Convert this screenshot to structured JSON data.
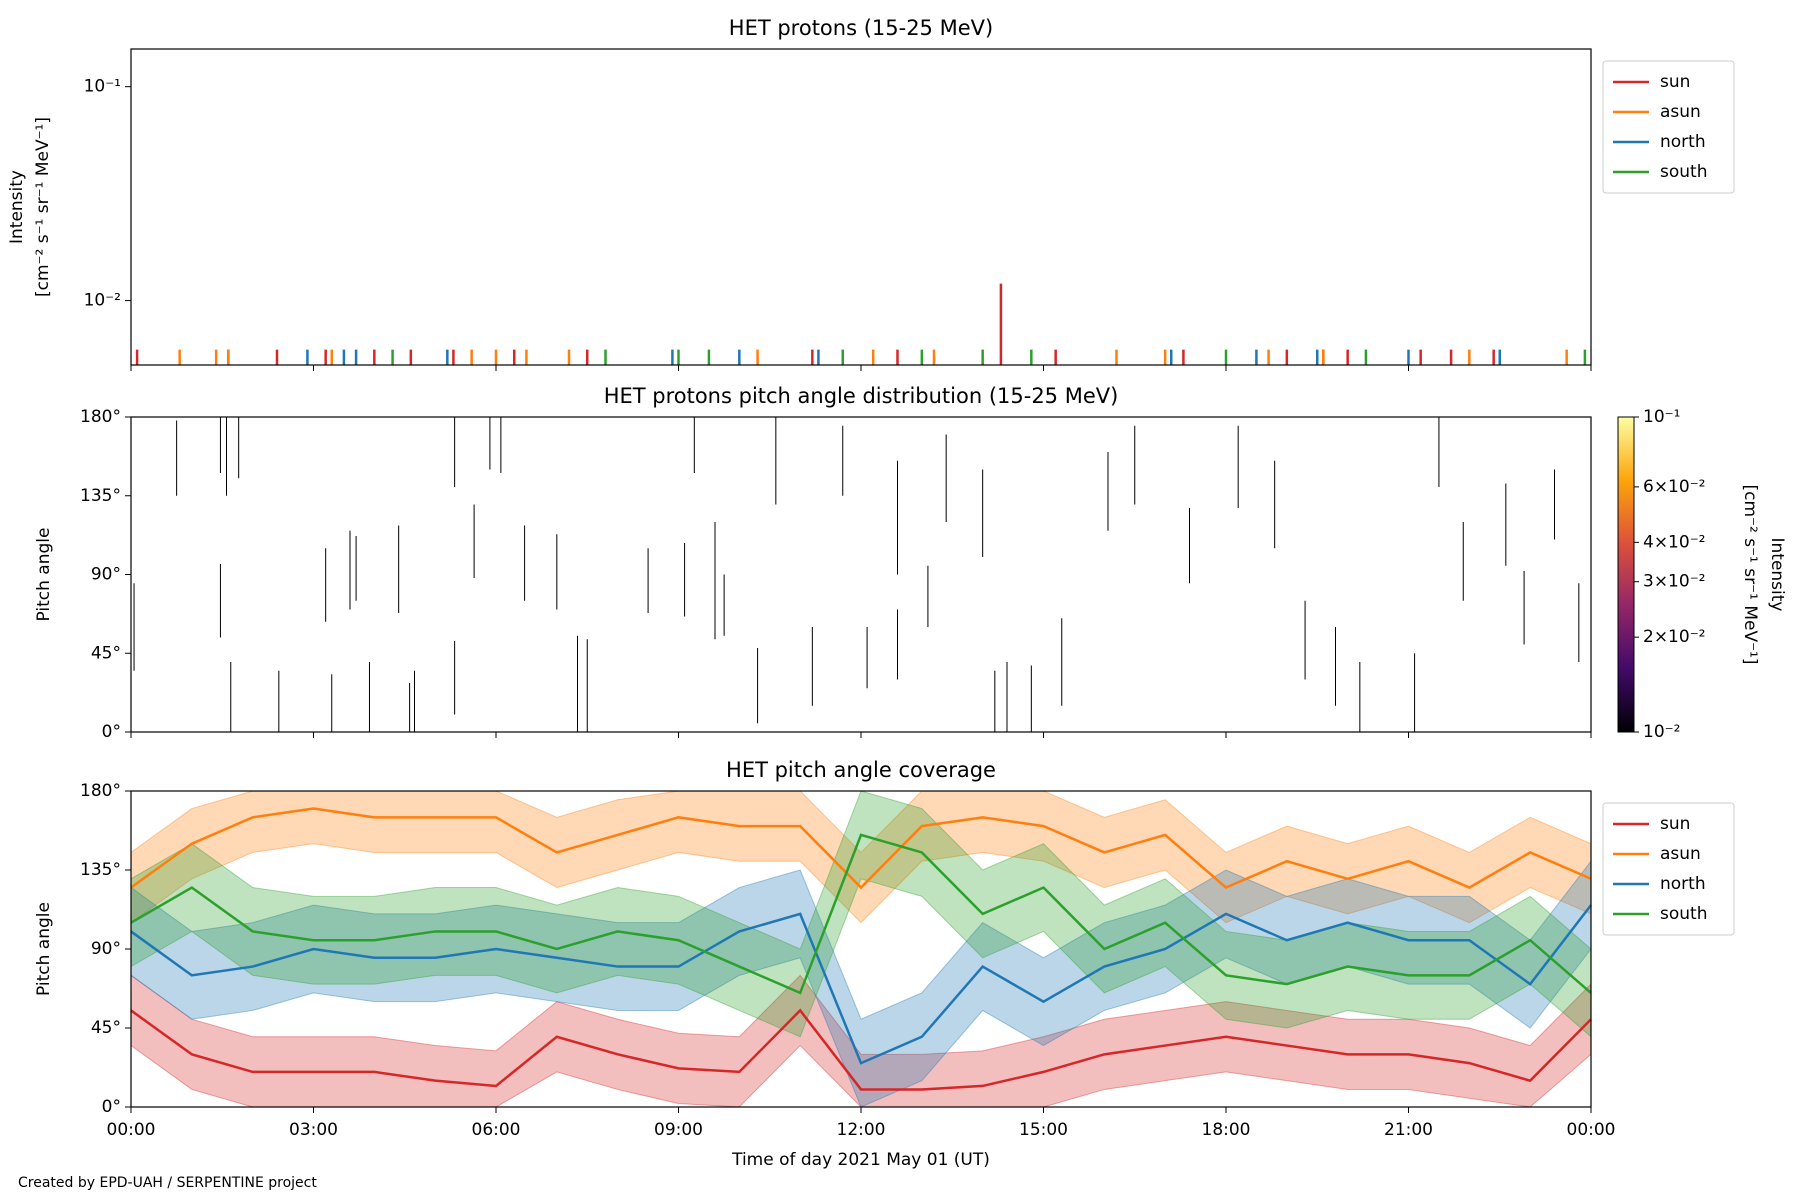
{
  "footer": "Created by EPD-UAH / SERPENTINE project",
  "chart_data": [
    {
      "type": "spike",
      "title": "HET protons (15-25 MeV)",
      "ylabel": [
        "Intensity",
        "[cm⁻² s⁻¹ sr⁻¹ MeV⁻¹]"
      ],
      "log_y": true,
      "ylim": [
        0.005,
        0.15
      ],
      "yticks": [
        {
          "value": 0.01,
          "label": "10⁻²"
        },
        {
          "value": 0.1,
          "label": "10⁻¹"
        }
      ],
      "legend": "outside-upper-right",
      "series": [
        {
          "name": "sun",
          "color": "#d62728",
          "x": [
            0.1,
            1.6,
            2.4,
            3.2,
            4.0,
            4.6,
            5.3,
            6.3,
            7.5,
            11.2,
            12.6,
            14.3,
            15.2,
            17.3,
            19.0,
            19.6,
            20.0,
            21.2,
            21.7,
            22.4
          ],
          "values": [
            0.0059,
            0.0059,
            0.0059,
            0.0059,
            0.0059,
            0.0059,
            0.0059,
            0.0059,
            0.0059,
            0.0059,
            0.0059,
            0.012,
            0.0059,
            0.0059,
            0.0059,
            0.0059,
            0.0059,
            0.0059,
            0.0059,
            0.0059
          ]
        },
        {
          "name": "asun",
          "color": "#ff7f0e",
          "x": [
            0.8,
            1.4,
            1.6,
            3.3,
            5.6,
            6.0,
            6.5,
            7.2,
            10.3,
            12.2,
            13.2,
            16.2,
            17.0,
            18.7,
            19.6,
            22.0,
            23.6
          ],
          "values": [
            0.0059,
            0.0059,
            0.0059,
            0.0059,
            0.0059,
            0.0059,
            0.0059,
            0.0059,
            0.0059,
            0.0059,
            0.0059,
            0.0059,
            0.0059,
            0.0059,
            0.0059,
            0.0059,
            0.0059
          ]
        },
        {
          "name": "north",
          "color": "#1f77b4",
          "x": [
            2.9,
            3.5,
            3.7,
            5.2,
            8.9,
            10.0,
            11.3,
            17.1,
            18.5,
            19.5,
            21.0,
            22.5
          ],
          "values": [
            0.0059,
            0.0059,
            0.0059,
            0.0059,
            0.0059,
            0.0059,
            0.0059,
            0.0059,
            0.0059,
            0.0059,
            0.0059,
            0.0059
          ]
        },
        {
          "name": "south",
          "color": "#2ca02c",
          "x": [
            4.3,
            7.8,
            9.0,
            9.5,
            11.7,
            13.0,
            14.0,
            14.8,
            18.0,
            20.3,
            23.9
          ],
          "values": [
            0.0059,
            0.0059,
            0.0059,
            0.0059,
            0.0059,
            0.0059,
            0.0059,
            0.0059,
            0.0059,
            0.0059,
            0.0059
          ]
        }
      ]
    },
    {
      "type": "segments",
      "title": "HET protons pitch angle distribution (15-25 MeV)",
      "ylabel": "Pitch angle",
      "color": "#000000",
      "ylim": [
        0,
        180
      ],
      "yticks": [
        {
          "value": 0,
          "label": "0°"
        },
        {
          "value": 45,
          "label": "45°"
        },
        {
          "value": 90,
          "label": "90°"
        },
        {
          "value": 135,
          "label": "135°"
        },
        {
          "value": 180,
          "label": "180°"
        }
      ],
      "x": [
        0.05,
        0.75,
        1.47,
        1.47,
        1.57,
        1.64,
        1.77,
        2.43,
        3.2,
        3.3,
        3.6,
        3.7,
        3.92,
        4.4,
        4.58,
        4.66,
        5.32,
        5.32,
        5.64,
        5.9,
        6.08,
        6.47,
        7.0,
        7.34,
        7.5,
        8.5,
        9.1,
        9.26,
        9.6,
        9.75,
        10.3,
        10.6,
        11.2,
        11.7,
        12.1,
        12.6,
        12.6,
        13.1,
        13.4,
        14.0,
        14.2,
        14.4,
        14.8,
        15.3,
        16.06,
        16.5,
        17.4,
        18.2,
        18.8,
        19.3,
        19.8,
        20.2,
        21.1,
        21.5,
        21.9,
        22.6,
        22.9,
        23.4,
        23.8
      ],
      "low": [
        35,
        135,
        54,
        148,
        135,
        0,
        145,
        0,
        63,
        0,
        70,
        75,
        0,
        68,
        0,
        0,
        10,
        140,
        88,
        150,
        148,
        75,
        70,
        0,
        0,
        68,
        66,
        148,
        53,
        55,
        5,
        130,
        15,
        135,
        25,
        30,
        90,
        60,
        120,
        100,
        0,
        0,
        0,
        15,
        115,
        130,
        85,
        128,
        105,
        30,
        15,
        0,
        0,
        140,
        75,
        95,
        50,
        110,
        40
      ],
      "high": [
        85,
        178,
        96,
        180,
        180,
        40,
        180,
        35,
        105,
        33,
        115,
        112,
        40,
        118,
        28,
        35,
        52,
        180,
        130,
        180,
        180,
        118,
        113,
        55,
        53,
        105,
        108,
        180,
        120,
        90,
        48,
        180,
        60,
        175,
        60,
        70,
        155,
        95,
        170,
        150,
        35,
        40,
        38,
        65,
        160,
        175,
        128,
        175,
        155,
        75,
        60,
        40,
        45,
        180,
        120,
        142,
        92,
        150,
        85
      ],
      "colorbar": {
        "label": [
          "Intensity",
          "[cm⁻² s⁻¹ sr⁻¹ MeV⁻¹]"
        ],
        "colormap": "inferno",
        "log": true,
        "clim": [
          0.01,
          0.1
        ],
        "cticks": [
          {
            "value": 0.01,
            "label": "10⁻²"
          },
          {
            "value": 0.02,
            "label": "2×10⁻²"
          },
          {
            "value": 0.03,
            "label": "3×10⁻²"
          },
          {
            "value": 0.04,
            "label": "4×10⁻²"
          },
          {
            "value": 0.06,
            "label": "6×10⁻²"
          },
          {
            "value": 0.1,
            "label": "10⁻¹"
          }
        ]
      }
    },
    {
      "type": "band-line",
      "title": "HET pitch angle coverage",
      "ylabel": "Pitch angle",
      "xlabel": "Time of day 2021 May 01 (UT)",
      "legend": "outside-upper-right",
      "ylim": [
        0,
        180
      ],
      "yticks": [
        {
          "value": 0,
          "label": "0°"
        },
        {
          "value": 45,
          "label": "45°"
        },
        {
          "value": 90,
          "label": "90°"
        },
        {
          "value": 135,
          "label": "135°"
        },
        {
          "value": 180,
          "label": "180°"
        }
      ],
      "xlim": [
        0,
        24
      ],
      "xticks": [
        {
          "value": 0,
          "label": "00:00"
        },
        {
          "value": 3,
          "label": "03:00"
        },
        {
          "value": 6,
          "label": "06:00"
        },
        {
          "value": 9,
          "label": "09:00"
        },
        {
          "value": 12,
          "label": "12:00"
        },
        {
          "value": 15,
          "label": "15:00"
        },
        {
          "value": 18,
          "label": "18:00"
        },
        {
          "value": 21,
          "label": "21:00"
        },
        {
          "value": 24,
          "label": "00:00"
        }
      ],
      "x": [
        0,
        1,
        2,
        3,
        4,
        5,
        6,
        7,
        8,
        9,
        10,
        11,
        12,
        13,
        14,
        15,
        16,
        17,
        18,
        19,
        20,
        21,
        22,
        23,
        24
      ],
      "series": [
        {
          "name": "sun",
          "color": "#d62728",
          "values": [
            55,
            30,
            20,
            20,
            20,
            15,
            12,
            40,
            30,
            22,
            20,
            55,
            10,
            10,
            12,
            20,
            30,
            35,
            40,
            35,
            30,
            30,
            25,
            15,
            50
          ],
          "lower": [
            35,
            10,
            0,
            0,
            0,
            0,
            0,
            20,
            10,
            2,
            0,
            35,
            0,
            0,
            0,
            0,
            10,
            15,
            20,
            15,
            10,
            10,
            5,
            0,
            30
          ],
          "upper": [
            75,
            50,
            40,
            40,
            40,
            35,
            32,
            60,
            50,
            42,
            40,
            75,
            30,
            30,
            32,
            40,
            50,
            55,
            60,
            55,
            50,
            50,
            45,
            35,
            70
          ]
        },
        {
          "name": "asun",
          "color": "#ff7f0e",
          "values": [
            125,
            150,
            165,
            170,
            165,
            165,
            165,
            145,
            155,
            165,
            160,
            160,
            125,
            160,
            165,
            160,
            145,
            155,
            125,
            140,
            130,
            140,
            125,
            145,
            130
          ],
          "lower": [
            105,
            130,
            145,
            150,
            145,
            145,
            145,
            125,
            135,
            145,
            140,
            140,
            105,
            140,
            145,
            140,
            125,
            135,
            105,
            120,
            110,
            120,
            105,
            125,
            110
          ],
          "upper": [
            145,
            170,
            180,
            180,
            180,
            180,
            180,
            165,
            175,
            180,
            180,
            180,
            145,
            180,
            180,
            180,
            165,
            175,
            145,
            160,
            150,
            160,
            145,
            165,
            150
          ]
        },
        {
          "name": "north",
          "color": "#1f77b4",
          "values": [
            100,
            75,
            80,
            90,
            85,
            85,
            90,
            85,
            80,
            80,
            100,
            110,
            25,
            40,
            80,
            60,
            80,
            90,
            110,
            95,
            105,
            95,
            95,
            70,
            115
          ],
          "lower": [
            75,
            50,
            55,
            65,
            60,
            60,
            65,
            60,
            55,
            55,
            75,
            85,
            0,
            15,
            55,
            35,
            55,
            65,
            85,
            70,
            80,
            70,
            70,
            45,
            90
          ],
          "upper": [
            125,
            100,
            105,
            115,
            110,
            110,
            115,
            110,
            105,
            105,
            125,
            135,
            50,
            65,
            105,
            85,
            105,
            115,
            135,
            120,
            130,
            120,
            120,
            95,
            140
          ]
        },
        {
          "name": "south",
          "color": "#2ca02c",
          "values": [
            105,
            125,
            100,
            95,
            95,
            100,
            100,
            90,
            100,
            95,
            80,
            65,
            155,
            145,
            110,
            125,
            90,
            105,
            75,
            70,
            80,
            75,
            75,
            95,
            65
          ],
          "lower": [
            80,
            100,
            75,
            70,
            70,
            75,
            75,
            65,
            75,
            70,
            55,
            40,
            130,
            120,
            85,
            100,
            65,
            80,
            50,
            45,
            55,
            50,
            50,
            70,
            40
          ],
          "upper": [
            130,
            150,
            125,
            120,
            120,
            125,
            125,
            115,
            125,
            120,
            105,
            90,
            180,
            170,
            135,
            150,
            115,
            130,
            100,
            95,
            105,
            100,
            100,
            120,
            90
          ]
        }
      ]
    }
  ]
}
